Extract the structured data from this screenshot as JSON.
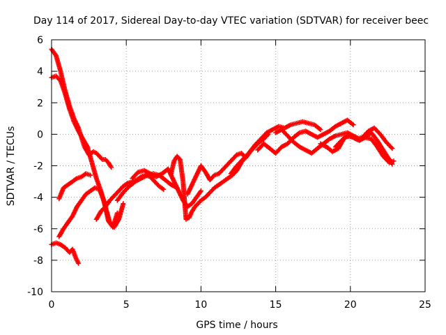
{
  "chart_data": {
    "type": "scatter",
    "title": "Day 114 of 2017, Sidereal Day-to-day VTEC variation (SDTVAR) for receiver beec",
    "xlabel": "GPS time / hours",
    "ylabel": "SDTVAR / TECUs",
    "xlim": [
      0,
      25
    ],
    "ylim": [
      -10,
      6
    ],
    "xticks": [
      0,
      5,
      10,
      15,
      20,
      25
    ],
    "yticks": [
      -10,
      -8,
      -6,
      -4,
      -2,
      0,
      2,
      4,
      6
    ],
    "xtick_labels": [
      "0",
      "5",
      "10",
      "15",
      "20",
      "25"
    ],
    "ytick_labels": [
      "-10",
      "-8",
      "-6",
      "-4",
      "-2",
      "0",
      "2",
      "4",
      "6"
    ],
    "grid": true,
    "marker": "plus",
    "color": "#ff0000",
    "series": [
      {
        "name": "track-1",
        "x": [
          0.0,
          0.3,
          0.6,
          0.9,
          1.2,
          1.5,
          1.8,
          2.0,
          2.2,
          2.5,
          2.8,
          3.0,
          3.2,
          3.4,
          3.6,
          3.8,
          4.0
        ],
        "y": [
          5.4,
          5.0,
          4.0,
          2.8,
          1.8,
          1.0,
          0.4,
          -0.2,
          -0.8,
          -1.3,
          -1.1,
          -1.2,
          -1.4,
          -1.6,
          -1.6,
          -1.8,
          -2.1
        ]
      },
      {
        "name": "track-2",
        "x": [
          0.0,
          0.3,
          0.6,
          0.9,
          1.2,
          1.5,
          1.8,
          2.1,
          2.4,
          2.7,
          3.0,
          3.3,
          3.6,
          3.9,
          4.2,
          4.5,
          4.8
        ],
        "y": [
          3.6,
          3.7,
          3.4,
          2.6,
          1.6,
          0.8,
          0.2,
          -0.3,
          -0.8,
          -1.8,
          -2.8,
          -3.6,
          -4.6,
          -5.6,
          -5.9,
          -5.4,
          -4.4
        ]
      },
      {
        "name": "track-3",
        "x": [
          0.5,
          0.8,
          1.1,
          1.4,
          1.7,
          2.0,
          2.3,
          2.6
        ],
        "y": [
          -4.1,
          -3.4,
          -3.2,
          -3.0,
          -2.8,
          -2.7,
          -2.5,
          -2.6
        ]
      },
      {
        "name": "track-4",
        "x": [
          0.0,
          0.3,
          0.6,
          0.9,
          1.2,
          1.4,
          1.6,
          1.8
        ],
        "y": [
          -7.0,
          -6.9,
          -7.0,
          -7.2,
          -7.5,
          -7.3,
          -7.8,
          -8.2
        ]
      },
      {
        "name": "track-5",
        "x": [
          0.5,
          0.8,
          1.1,
          1.4,
          1.7,
          2.0,
          2.3,
          2.6,
          2.9,
          3.2,
          3.5,
          3.8,
          4.1,
          4.4
        ],
        "y": [
          -6.5,
          -6.0,
          -5.6,
          -5.2,
          -4.6,
          -4.2,
          -3.8,
          -3.6,
          -3.4,
          -3.5,
          -4.2,
          -5.5,
          -5.9,
          -5.0
        ]
      },
      {
        "name": "track-6",
        "x": [
          3.0,
          3.3,
          3.6,
          3.9,
          4.2,
          4.5,
          4.8,
          5.1,
          5.4,
          5.7,
          6.0,
          6.3,
          6.6,
          6.9,
          7.2,
          7.5
        ],
        "y": [
          -5.4,
          -4.9,
          -4.6,
          -4.2,
          -3.9,
          -3.6,
          -3.3,
          -3.1,
          -3.0,
          -2.9,
          -2.7,
          -2.6,
          -2.7,
          -3.0,
          -3.3,
          -3.5
        ]
      },
      {
        "name": "track-7",
        "x": [
          4.4,
          4.8,
          5.2,
          5.6,
          6.0,
          6.4,
          6.8,
          7.2,
          7.6,
          8.0,
          8.4
        ],
        "y": [
          -4.2,
          -3.7,
          -3.3,
          -3.0,
          -2.8,
          -2.6,
          -2.5,
          -2.6,
          -2.9,
          -3.2,
          -3.4
        ]
      },
      {
        "name": "track-8",
        "x": [
          5.4,
          5.8,
          6.2,
          6.6,
          7.0,
          7.4,
          7.8,
          8.2,
          8.5,
          8.8,
          9.1,
          9.4,
          9.7,
          10.0
        ],
        "y": [
          -2.8,
          -2.4,
          -2.3,
          -2.5,
          -2.7,
          -2.5,
          -2.2,
          -3.0,
          -3.6,
          -4.2,
          -4.6,
          -4.4,
          -4.0,
          -3.6
        ]
      },
      {
        "name": "track-9",
        "x": [
          8.0,
          8.2,
          8.4,
          8.6,
          8.8,
          9.0,
          9.2,
          9.4,
          9.6,
          9.8,
          10.0,
          10.3,
          10.6,
          10.9,
          11.2,
          11.5,
          11.8,
          12.1,
          12.4,
          12.7,
          13.0
        ],
        "y": [
          -2.5,
          -1.7,
          -1.4,
          -1.6,
          -3.0,
          -5.4,
          -5.3,
          -4.9,
          -4.6,
          -4.4,
          -4.2,
          -4.0,
          -3.7,
          -3.4,
          -3.2,
          -3.0,
          -2.8,
          -2.6,
          -2.3,
          -1.8,
          -1.4
        ]
      },
      {
        "name": "track-10",
        "x": [
          9.1,
          9.4,
          9.7,
          10.0,
          10.3,
          10.6,
          10.9,
          11.2,
          11.5,
          11.8,
          12.1,
          12.4,
          12.7,
          13.0,
          13.3,
          13.6,
          13.9,
          14.2,
          14.5
        ],
        "y": [
          -3.8,
          -3.2,
          -2.6,
          -2.0,
          -2.4,
          -2.9,
          -2.6,
          -2.5,
          -2.2,
          -1.9,
          -1.6,
          -1.3,
          -1.2,
          -1.5,
          -1.1,
          -0.8,
          -0.5,
          -0.3,
          0.0
        ]
      },
      {
        "name": "track-11",
        "x": [
          12.0,
          12.4,
          12.8,
          13.2,
          13.6,
          14.0,
          14.4,
          14.8,
          15.2,
          15.6,
          16.0,
          16.4,
          16.8,
          17.2,
          17.6,
          18.0
        ],
        "y": [
          -2.5,
          -2.0,
          -1.6,
          -1.2,
          -0.7,
          -0.3,
          0.1,
          0.3,
          0.5,
          0.4,
          0.6,
          0.7,
          0.8,
          0.7,
          0.6,
          0.3
        ]
      },
      {
        "name": "track-12",
        "x": [
          13.8,
          14.2,
          14.6,
          15.0,
          15.4,
          15.8,
          16.2,
          16.6,
          17.0,
          17.4,
          17.8,
          18.2,
          18.6,
          19.0,
          19.4,
          19.8,
          20.2
        ],
        "y": [
          -1.0,
          -0.6,
          -0.9,
          -1.2,
          -0.8,
          -0.6,
          -0.2,
          0.1,
          0.2,
          0.0,
          -0.2,
          0.0,
          0.2,
          0.5,
          0.7,
          0.9,
          0.6
        ]
      },
      {
        "name": "track-13",
        "x": [
          15.0,
          15.4,
          15.8,
          16.2,
          16.6,
          17.0,
          17.4,
          17.8,
          18.2,
          18.6,
          19.0,
          19.4,
          19.8,
          20.2,
          20.6,
          21.0,
          21.4,
          21.8,
          22.2,
          22.6,
          22.8
        ],
        "y": [
          0.1,
          0.3,
          -0.1,
          -0.5,
          -0.8,
          -1.0,
          -1.2,
          -0.9,
          -0.6,
          -0.3,
          -0.1,
          0.0,
          0.1,
          -0.1,
          -0.3,
          -0.2,
          0.1,
          -0.4,
          -1.0,
          -1.6,
          -1.9
        ]
      },
      {
        "name": "track-14",
        "x": [
          18.0,
          18.4,
          18.8,
          19.2,
          19.6,
          20.0,
          20.4,
          20.8,
          21.2,
          21.6,
          22.0,
          22.4,
          22.8
        ],
        "y": [
          -0.6,
          -0.8,
          -1.1,
          -0.9,
          -0.2,
          -0.1,
          -0.3,
          -0.2,
          0.2,
          0.4,
          0.0,
          -0.5,
          -0.9
        ]
      },
      {
        "name": "track-15",
        "x": [
          19.0,
          19.4,
          19.8,
          20.2,
          20.6,
          21.0,
          21.4,
          21.8,
          22.2,
          22.6,
          22.9
        ],
        "y": [
          -0.8,
          -0.4,
          -0.1,
          -0.2,
          -0.4,
          -0.2,
          -0.3,
          -0.8,
          -1.4,
          -1.8,
          -1.7
        ]
      }
    ]
  }
}
